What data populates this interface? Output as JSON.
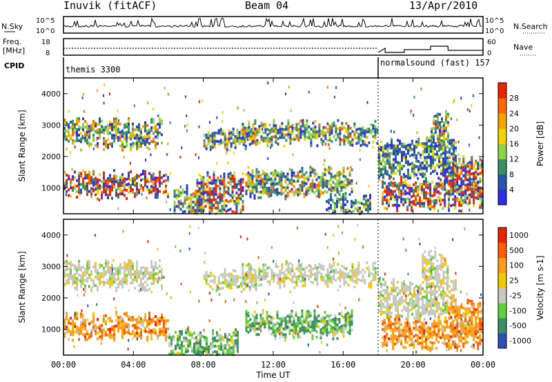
{
  "header": {
    "station": "Inuvik (fitACF)",
    "beam": "Beam 04",
    "date": "13/Apr/2010"
  },
  "summary_panels": {
    "nsky_label": "N.Sky",
    "nsky_ticks": [
      "10^5",
      "10^0"
    ],
    "nsearch_label": "N.Search",
    "nsearch_ticks": [
      "10^5",
      "10^0"
    ],
    "freq_label_top": "Freq.",
    "freq_label_bottom": "[MHz]",
    "freq_ticks": [
      "18",
      "8"
    ],
    "nave_label": "Nave",
    "nave_ticks": [
      "60",
      "0"
    ],
    "cpid_label": "CPID",
    "cpid_modes": [
      "themis 3300",
      "normalsound (fast) 157"
    ]
  },
  "chart_data": [
    {
      "type": "heatmap",
      "title": "Power",
      "ylabel": "Slant Range [km]",
      "ylim": [
        180,
        4500
      ],
      "yticks": [
        "1000",
        "2000",
        "3000",
        "4000"
      ],
      "xlim_hours": [
        0,
        24
      ],
      "colorbar_label": "Power [dB]",
      "colorbar_ticks": [
        "4",
        "8",
        "12",
        "16",
        "20",
        "24",
        "28"
      ],
      "colorbar_colors": [
        "#2e2ee6",
        "#2855aa",
        "#3a8f67",
        "#8ed14c",
        "#f2d100",
        "#f2a400",
        "#ff6800",
        "#e82600"
      ],
      "echo_regions": [
        {
          "start": 0,
          "end": 5.6,
          "range_km": [
            2350,
            3100
          ],
          "level": "moderate"
        },
        {
          "start": 0,
          "end": 6.0,
          "range_km": [
            800,
            1450
          ],
          "level": "strong"
        },
        {
          "start": 6.3,
          "end": 8.0,
          "range_km": [
            250,
            1000
          ],
          "level": "moderate"
        },
        {
          "start": 7.6,
          "end": 10.3,
          "range_km": [
            180,
            1400
          ],
          "level": "strong"
        },
        {
          "start": 8.0,
          "end": 11.0,
          "range_km": [
            2300,
            2800
          ],
          "level": "moderate"
        },
        {
          "start": 10.2,
          "end": 17.9,
          "range_km": [
            2450,
            3050
          ],
          "level": "moderate"
        },
        {
          "start": 10.4,
          "end": 16.5,
          "range_km": [
            800,
            1550
          ],
          "level": "moderate"
        },
        {
          "start": 15.0,
          "end": 17.5,
          "range_km": [
            180,
            700
          ],
          "level": "weak"
        },
        {
          "start": 18.0,
          "end": 22.5,
          "range_km": [
            1400,
            2500
          ],
          "level": "weak"
        },
        {
          "start": 18.2,
          "end": 24.0,
          "range_km": [
            450,
            1250
          ],
          "level": "strong"
        },
        {
          "start": 22.0,
          "end": 24.0,
          "range_km": [
            1000,
            1900
          ],
          "level": "strong"
        },
        {
          "start": 21.0,
          "end": 22.0,
          "range_km": [
            2500,
            3400
          ],
          "level": "moderate"
        }
      ]
    },
    {
      "type": "heatmap",
      "title": "Velocity",
      "ylabel": "Slant Range [km]",
      "xlabel": "Time UT",
      "ylim": [
        180,
        4500
      ],
      "yticks": [
        "1000",
        "2000",
        "3000",
        "4000"
      ],
      "xticks": [
        "00:00",
        "04:00",
        "08:00",
        "12:00",
        "16:00",
        "20:00",
        "00:00"
      ],
      "xlim_hours": [
        0,
        24
      ],
      "colorbar_label": "Velocity [m s-1]",
      "colorbar_ticks": [
        "1000",
        "500",
        "100",
        "25",
        "-25",
        "-100",
        "-500",
        "-1000"
      ],
      "colorbar_colors": [
        "#2e4fb4",
        "#3a8f67",
        "#5fd03a",
        "#c8c8c0",
        "#f2c800",
        "#ff9d1a",
        "#ff5d00",
        "#e82600"
      ],
      "echo_regions": [
        {
          "start": 0,
          "end": 5.6,
          "range_km": [
            2350,
            3100
          ],
          "level": "ground"
        },
        {
          "start": 0,
          "end": 6.0,
          "range_km": [
            800,
            1450
          ],
          "level": "away"
        },
        {
          "start": 6.0,
          "end": 10.0,
          "range_km": [
            180,
            900
          ],
          "level": "toward"
        },
        {
          "start": 8.0,
          "end": 11.0,
          "range_km": [
            2350,
            2800
          ],
          "level": "ground"
        },
        {
          "start": 10.2,
          "end": 17.9,
          "range_km": [
            2450,
            3050
          ],
          "level": "ground"
        },
        {
          "start": 10.4,
          "end": 16.5,
          "range_km": [
            800,
            1500
          ],
          "level": "toward"
        },
        {
          "start": 18.0,
          "end": 22.5,
          "range_km": [
            1400,
            2500
          ],
          "level": "ground"
        },
        {
          "start": 18.2,
          "end": 24.0,
          "range_km": [
            450,
            1300
          ],
          "level": "away"
        },
        {
          "start": 22.0,
          "end": 24.0,
          "range_km": [
            1000,
            1900
          ],
          "level": "away"
        },
        {
          "start": 20.5,
          "end": 22.0,
          "range_km": [
            2500,
            3400
          ],
          "level": "ground"
        }
      ]
    }
  ]
}
